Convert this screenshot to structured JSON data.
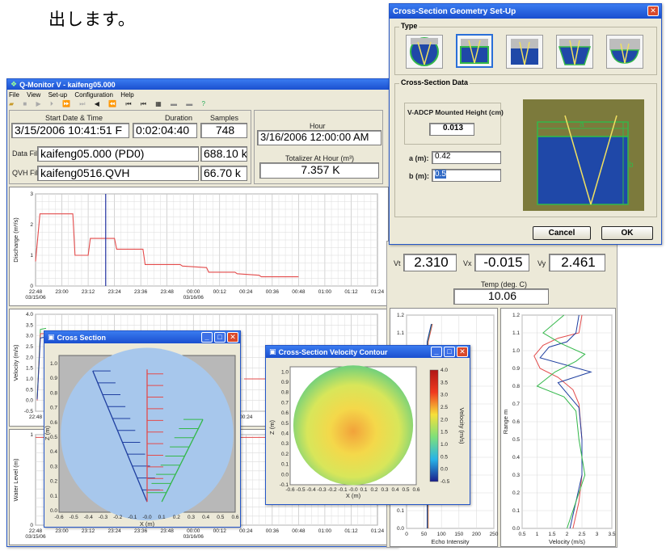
{
  "page": {
    "japanese_text": "出します。"
  },
  "qmonitor": {
    "title": "Q-Monitor V - kaifeng05.000",
    "menu": [
      "File",
      "View",
      "Set-up",
      "Configuration",
      "Help"
    ],
    "start_label": "Start Date & Time",
    "start_value": "3/15/2006 10:41:51 F",
    "duration_label": "Duration",
    "duration_value": "0:02:04:40",
    "samples_label": "Samples",
    "samples_value": "748",
    "hour_label": "Hour",
    "hour_value": "3/16/2006 12:00:00 AM",
    "data_file_label": "Data File",
    "data_file_value": "kaifeng05.000 (PD0)",
    "data_file_size": "688.10 k",
    "qvh_file_label": "QVH File",
    "qvh_file_value": "kaifeng0516.QVH",
    "qvh_file_size": "66.70 k",
    "totalizer_label": "Totalizer At Hour (m³)",
    "totalizer_value": "7.357 K",
    "vt_label": "Vt",
    "vt_value": "2.310",
    "vx_label": "Vx",
    "vx_value": "-0.015",
    "vy_label": "Vy",
    "vy_value": "2.461",
    "temp_label": "Temp (deg. C)",
    "temp_value": "10.06",
    "time_ticks": [
      "22:48",
      "23:00",
      "23:12",
      "23:24",
      "23:36",
      "23:48",
      "00:00",
      "00:12",
      "00:24",
      "00:36",
      "00:48",
      "01:00",
      "01:12",
      "01:24"
    ],
    "date_start": "03/15/06",
    "date_mid": "03/16/06"
  },
  "geometry_dialog": {
    "title": "Cross-Section Geometry Set-Up",
    "type_group": "Type",
    "data_group": "Cross-Section Data",
    "height_label": "V-ADCP Mounted Height (cm)",
    "height_value": "0.013",
    "a_label": "a (m):",
    "a_value": "0.42",
    "b_label": "b (m):",
    "b_value": "0.5",
    "diagram_a": "a",
    "diagram_b": "b",
    "cancel": "Cancel",
    "ok": "OK"
  },
  "cross_section_window": {
    "title": "Cross Section"
  },
  "contour_window": {
    "title": "Cross-Section Velocity Contour"
  },
  "colors": {
    "xp_blue": "#2456c8",
    "series_red": "#e34b4b",
    "series_green": "#33b84a",
    "series_blue": "#1f3fa0",
    "water_blue": "#1f48a8",
    "olive": "#7c7a3c",
    "disc_blue": "#a7c7ec"
  },
  "chart_data": [
    {
      "type": "line",
      "ylabel": "Discharge (m³/s)",
      "ylim": [
        0,
        3
      ],
      "x_ticks": [
        "22:48",
        "23:00",
        "23:12",
        "23:24",
        "23:36",
        "23:48",
        "00:00",
        "00:12",
        "00:24",
        "00:36",
        "00:48",
        "01:00",
        "01:12",
        "01:24"
      ],
      "series": [
        {
          "color": "#e34b4b",
          "x": [
            "22:48",
            "22:50",
            "23:00",
            "23:05",
            "23:06",
            "23:12",
            "23:13",
            "23:24",
            "23:25",
            "23:37",
            "23:38",
            "23:54",
            "23:55",
            "00:06",
            "00:07",
            "00:19",
            "00:20",
            "00:30",
            "00:31",
            "00:48"
          ],
          "values": [
            0.8,
            2.35,
            2.35,
            2.35,
            1.0,
            1.0,
            1.55,
            1.55,
            1.2,
            1.2,
            0.7,
            0.7,
            0.65,
            0.6,
            0.45,
            0.45,
            0.4,
            0.35,
            0.3,
            0.3
          ]
        }
      ],
      "grid": true
    },
    {
      "type": "line",
      "ylabel": "Velocity (m/s)",
      "ylim": [
        -0.5,
        4.0
      ],
      "y_ticks": [
        "4.0",
        "3.5",
        "3.0",
        "2.5",
        "2.0",
        "1.5",
        "1.0",
        "0.5",
        "0.0",
        "-0.5"
      ],
      "grid": true
    },
    {
      "type": "line",
      "ylabel": "Water Level (m)",
      "ylim": [
        0,
        1
      ],
      "x_ticks": [
        "22:48",
        "23:00",
        "23:12",
        "23:24",
        "23:36",
        "23:48",
        "00:00",
        "00:12",
        "00:24",
        "00:36",
        "00:48",
        "01:00",
        "01:12",
        "01:24"
      ],
      "grid": true
    },
    {
      "type": "line",
      "xlabel": "Echo Intensity",
      "ylim": [
        0,
        1.2
      ],
      "x_ticks": [
        "0",
        "50",
        "100",
        "150",
        "200",
        "250"
      ],
      "y_ticks": [
        "1.2",
        "1.1",
        "1.0",
        "0.9",
        "0.8",
        "0.7",
        "0.6",
        "0.5",
        "0.4",
        "0.3",
        "0.2",
        "0.1",
        "0.0"
      ],
      "grid": true
    },
    {
      "type": "line",
      "xlabel": "Velocity (m/s)",
      "ylabel": "Range m",
      "ylim": [
        0,
        1.2
      ],
      "x_ticks": [
        "0.5",
        "1",
        "1.5",
        "2",
        "2.5",
        "3",
        "3.5"
      ],
      "y_ticks": [
        "1.2",
        "1.1",
        "1.0",
        "0.9",
        "0.8",
        "0.7",
        "0.6",
        "0.5",
        "0.4",
        "0.3",
        "0.2",
        "0.1",
        "0.0"
      ],
      "series": [
        {
          "color": "#e34b4b",
          "x": [
            2.5,
            2.4,
            1.7,
            1.2,
            0.9,
            1.1,
            1.7,
            2.2,
            2.4,
            2.5,
            2.5,
            2.4,
            2.2
          ],
          "values": [
            1.2,
            1.1,
            1.07,
            1.03,
            0.97,
            0.9,
            0.85,
            0.78,
            0.7,
            0.5,
            0.3,
            0.15,
            0.0
          ]
        },
        {
          "color": "#1f3fa0",
          "x": [
            2.4,
            2.3,
            2.0,
            1.4,
            1.1,
            2.8,
            1.7,
            2.0,
            2.4,
            2.5,
            2.5,
            2.3,
            2.1
          ],
          "values": [
            1.2,
            1.1,
            1.05,
            1.02,
            0.96,
            0.88,
            0.82,
            0.76,
            0.68,
            0.5,
            0.3,
            0.15,
            0.0
          ]
        },
        {
          "color": "#33b84a",
          "x": [
            1.9,
            1.2,
            1.8,
            2.6,
            2.3,
            1.6,
            1.0,
            1.9,
            2.3,
            2.4,
            2.6,
            2.3,
            2.0
          ],
          "values": [
            1.2,
            1.1,
            1.04,
            0.98,
            0.94,
            0.88,
            0.8,
            0.74,
            0.66,
            0.5,
            0.3,
            0.15,
            0.0
          ]
        }
      ],
      "grid": true
    },
    {
      "type": "line",
      "xlabel": "X (m)",
      "ylabel": "Z (m)",
      "x_ticks": [
        "-0.6",
        "-0.5",
        "-0.4",
        "-0.3",
        "-0.2",
        "-0.1",
        "-0.0",
        "0.1",
        "0.2",
        "0.3",
        "0.4",
        "0.5",
        "0.6"
      ],
      "y_ticks": [
        "1.0",
        "0.9",
        "0.8",
        "0.7",
        "0.6",
        "0.5",
        "0.4",
        "0.3",
        "0.2",
        "0.1",
        "0.0"
      ]
    },
    {
      "type": "heatmap",
      "xlabel": "X (m)",
      "ylabel": "Z (m)",
      "colorbar_label": "Velocity (m/s)",
      "colorbar_ticks": [
        "4.0",
        "3.5",
        "3.0",
        "2.5",
        "2.0",
        "1.5",
        "1.0",
        "0.5",
        "0.0",
        "-0.5"
      ],
      "x_ticks": [
        "-0.6",
        "-0.5",
        "-0.4",
        "-0.3",
        "-0.2",
        "-0.1",
        "-0.0",
        "0.1",
        "0.2",
        "0.3",
        "0.4",
        "0.5",
        "0.6"
      ],
      "y_ticks": [
        "1.0",
        "0.9",
        "0.8",
        "0.7",
        "0.6",
        "0.5",
        "0.4",
        "0.3",
        "0.2",
        "0.1",
        "0.0",
        "-0.1"
      ]
    }
  ]
}
